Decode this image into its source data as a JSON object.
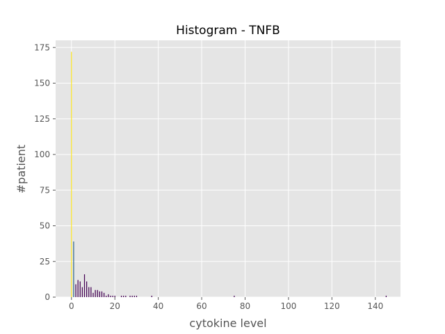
{
  "chart_data": {
    "type": "bar",
    "title": "Histogram - TNFB",
    "xlabel": "cytokine level",
    "ylabel": "#patient",
    "xlim": [
      -7.3,
      151.6
    ],
    "ylim": [
      0,
      180
    ],
    "xticks": [
      0,
      20,
      40,
      60,
      80,
      100,
      120,
      140
    ],
    "yticks": [
      0,
      25,
      50,
      75,
      100,
      125,
      150,
      175
    ],
    "grid": true,
    "bar_width": 0.4,
    "colors": {
      "background": "#e5e5e5",
      "grid": "#ffffff",
      "tick_text": "#555555"
    },
    "bars": [
      {
        "x": 0,
        "value": 172,
        "color": "#fde725"
      },
      {
        "x": 1,
        "value": 39,
        "color": "#31688e"
      },
      {
        "x": 2,
        "value": 9,
        "color": "#440154"
      },
      {
        "x": 3,
        "value": 12,
        "color": "#440154"
      },
      {
        "x": 4,
        "value": 11,
        "color": "#440154"
      },
      {
        "x": 5,
        "value": 7,
        "color": "#440154"
      },
      {
        "x": 6,
        "value": 16,
        "color": "#440154"
      },
      {
        "x": 7,
        "value": 11,
        "color": "#440154"
      },
      {
        "x": 8,
        "value": 7,
        "color": "#440154"
      },
      {
        "x": 9,
        "value": 7,
        "color": "#440154"
      },
      {
        "x": 10,
        "value": 3,
        "color": "#440154"
      },
      {
        "x": 11,
        "value": 5,
        "color": "#440154"
      },
      {
        "x": 12,
        "value": 5,
        "color": "#440154"
      },
      {
        "x": 13,
        "value": 4,
        "color": "#440154"
      },
      {
        "x": 14,
        "value": 4,
        "color": "#440154"
      },
      {
        "x": 15,
        "value": 3,
        "color": "#440154"
      },
      {
        "x": 16,
        "value": 1,
        "color": "#440154"
      },
      {
        "x": 17,
        "value": 2,
        "color": "#440154"
      },
      {
        "x": 18,
        "value": 1,
        "color": "#440154"
      },
      {
        "x": 19,
        "value": 1,
        "color": "#440154"
      },
      {
        "x": 20,
        "value": 1,
        "color": "#440154"
      },
      {
        "x": 23,
        "value": 1,
        "color": "#440154"
      },
      {
        "x": 24,
        "value": 1,
        "color": "#440154"
      },
      {
        "x": 25,
        "value": 1,
        "color": "#440154"
      },
      {
        "x": 27,
        "value": 1,
        "color": "#440154"
      },
      {
        "x": 28,
        "value": 1,
        "color": "#440154"
      },
      {
        "x": 29,
        "value": 1,
        "color": "#440154"
      },
      {
        "x": 30,
        "value": 1,
        "color": "#440154"
      },
      {
        "x": 37,
        "value": 1,
        "color": "#440154"
      },
      {
        "x": 75,
        "value": 1,
        "color": "#440154"
      },
      {
        "x": 145,
        "value": 1,
        "color": "#440154"
      }
    ]
  }
}
